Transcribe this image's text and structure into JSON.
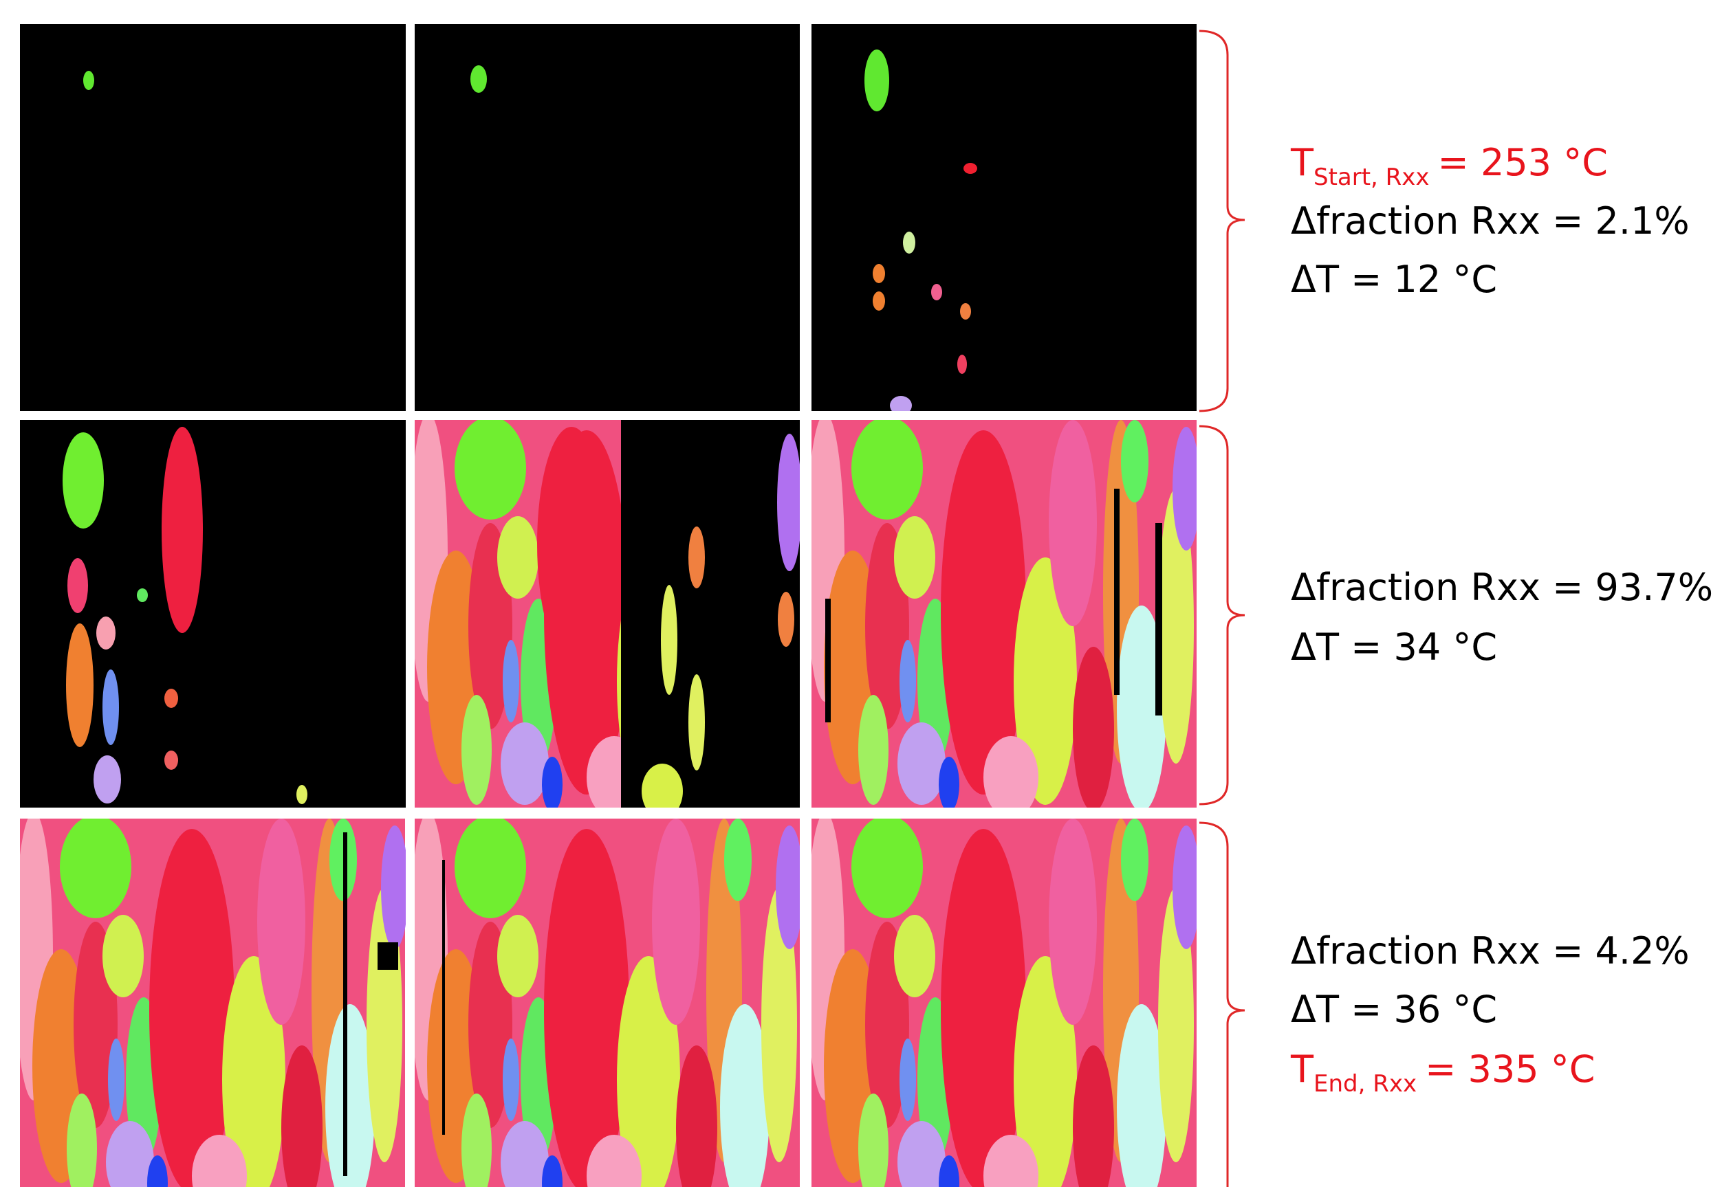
{
  "rows": [
    {
      "start": {
        "symbol": "T",
        "subscript": "Start, Rxx",
        "value": "= 253 °C"
      },
      "fraction": "Δfraction Rxx = 2.1%",
      "delta_t": "ΔT = 12 °C"
    },
    {
      "fraction": "Δfraction Rxx = 93.7%",
      "delta_t": "ΔT = 34 °C"
    },
    {
      "fraction": "Δfraction Rxx = 4.2%",
      "delta_t": "ΔT = 36 °C",
      "end": {
        "symbol": "T",
        "subscript": "End, Rxx",
        "value": "= 335 °C"
      }
    }
  ]
}
